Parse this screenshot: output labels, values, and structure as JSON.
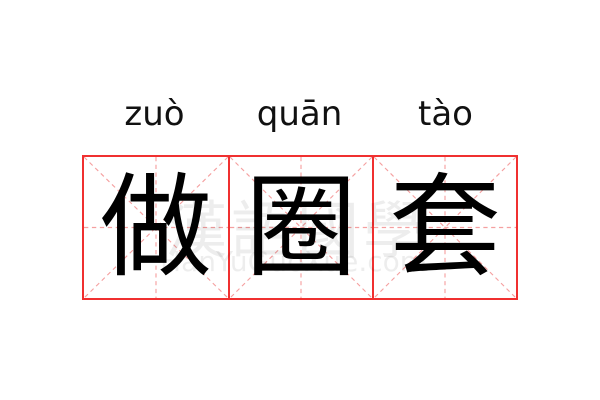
{
  "word": [
    {
      "pinyin": "zuò",
      "char": "做"
    },
    {
      "pinyin": "quān",
      "char": "圈"
    },
    {
      "pinyin": "tào",
      "char": "套"
    }
  ],
  "watermark": {
    "cn": "漢語國學",
    "en": "HanYuGuoXue.com"
  },
  "colors": {
    "grid_border": "#f03030",
    "grid_guides": "#f5a0a0",
    "text": "#000000"
  }
}
